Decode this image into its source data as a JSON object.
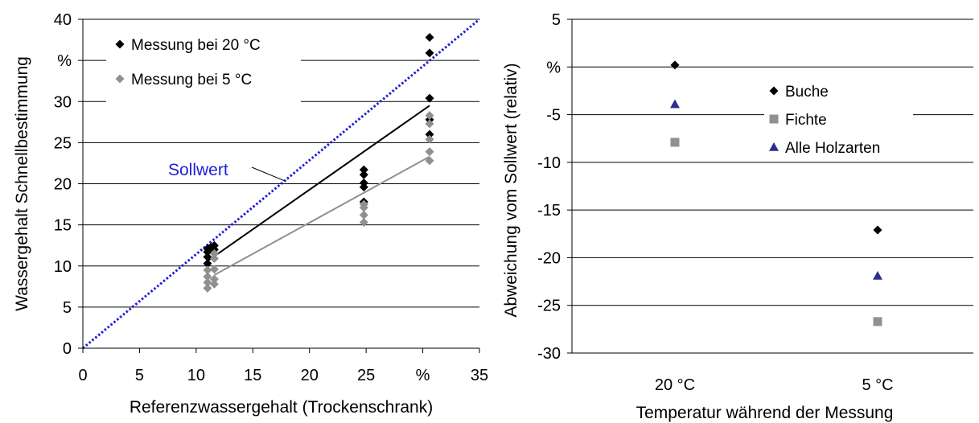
{
  "chart_data": [
    {
      "type": "scatter",
      "xlabel": "Referenzwassergehalt (Trockenschrank)",
      "ylabel": "Wassergehalt Schnellbestimmung",
      "xlim": [
        0,
        35
      ],
      "ylim": [
        0,
        40
      ],
      "x_ticks": [
        "0",
        "5",
        "10",
        "15",
        "20",
        "25",
        "%",
        "35"
      ],
      "y_ticks": [
        "0",
        "5",
        "10",
        "15",
        "20",
        "25",
        "30",
        "%",
        "40"
      ],
      "grid": "horizontal",
      "legend_position": "top-left",
      "colors": {
        "s20": "#000000",
        "s5": "#909090",
        "reference": "#1f1fd6"
      },
      "series": [
        {
          "name": "Messung bei 20 °C",
          "points": [
            [
              11.0,
              10.3
            ],
            [
              11.0,
              11.1
            ],
            [
              11.0,
              11.7
            ],
            [
              11.0,
              12.1
            ],
            [
              11.3,
              12.3
            ],
            [
              11.6,
              12.0
            ],
            [
              11.6,
              12.5
            ],
            [
              24.8,
              17.8
            ],
            [
              24.8,
              19.6
            ],
            [
              24.8,
              20.1
            ],
            [
              24.8,
              21.1
            ],
            [
              24.8,
              21.7
            ],
            [
              30.6,
              26.0
            ],
            [
              30.6,
              27.8
            ],
            [
              30.6,
              30.4
            ],
            [
              30.6,
              35.9
            ],
            [
              30.6,
              37.8
            ]
          ],
          "fit": [
            [
              11.0,
              10.6
            ],
            [
              30.6,
              29.5
            ]
          ]
        },
        {
          "name": "Messung bei 5 °C",
          "points": [
            [
              11.0,
              7.3
            ],
            [
              11.0,
              8.0
            ],
            [
              11.0,
              8.7
            ],
            [
              11.0,
              9.5
            ],
            [
              11.6,
              7.8
            ],
            [
              11.6,
              8.4
            ],
            [
              11.6,
              9.6
            ],
            [
              11.6,
              10.9
            ],
            [
              11.6,
              11.5
            ],
            [
              24.8,
              15.3
            ],
            [
              24.8,
              16.2
            ],
            [
              24.8,
              17.1
            ],
            [
              24.8,
              17.5
            ],
            [
              30.6,
              22.8
            ],
            [
              30.6,
              23.9
            ],
            [
              30.6,
              25.4
            ],
            [
              30.6,
              27.3
            ],
            [
              30.6,
              28.3
            ]
          ],
          "fit": [
            [
              11.6,
              8.9
            ],
            [
              30.6,
              23.3
            ]
          ]
        }
      ],
      "reference_line": {
        "label": "Sollwert",
        "from": [
          0,
          0
        ],
        "to": [
          35,
          40
        ]
      }
    },
    {
      "type": "scatter",
      "xlabel": "Temperatur während der Messung",
      "ylabel": "Abweichung vom Sollwert (relativ)",
      "categories": [
        "20 °C",
        "5 °C"
      ],
      "ylim": [
        -30,
        5
      ],
      "y_ticks": [
        "5",
        "%",
        "-5",
        "-10",
        "-15",
        "-20",
        "-25",
        "-30"
      ],
      "grid": "horizontal",
      "legend_position": "top-right",
      "series": [
        {
          "name": "Buche",
          "marker": "diamond",
          "color": "#000000",
          "values": [
            0.2,
            -17.1
          ]
        },
        {
          "name": "Fichte",
          "marker": "square",
          "color": "#909090",
          "values": [
            -7.9,
            -26.7
          ]
        },
        {
          "name": "Alle Holzarten",
          "marker": "triangle",
          "color": "#2e2e8f",
          "values": [
            -3.9,
            -21.9
          ]
        }
      ]
    }
  ]
}
